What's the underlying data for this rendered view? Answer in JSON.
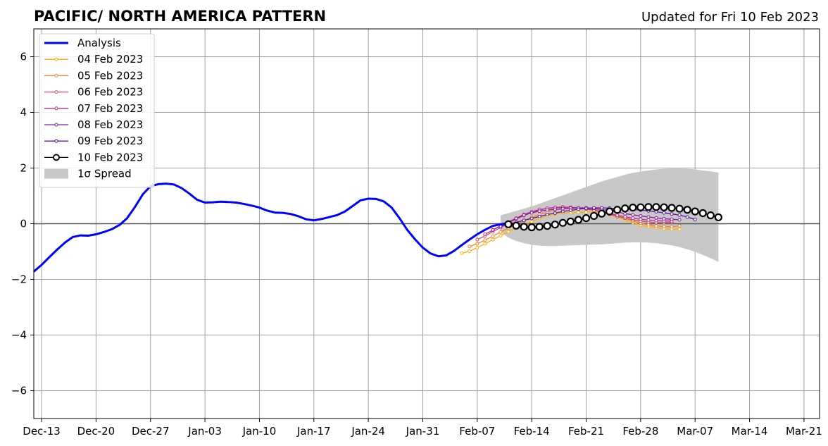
{
  "chart_data": {
    "type": "line",
    "title": "PACIFIC/ NORTH AMERICA PATTERN",
    "subtitle": "Updated for Fri 10 Feb 2023",
    "xlabel": "",
    "ylabel": "",
    "x_start": "2023-12-12",
    "xlim": [
      "Dec-12",
      "Mar-23"
    ],
    "ylim": [
      -7,
      7
    ],
    "grid": true,
    "legend_position": "top-left",
    "x_ticks": [
      "Dec-13",
      "Dec-20",
      "Dec-27",
      "Jan-03",
      "Jan-10",
      "Jan-17",
      "Jan-24",
      "Jan-31",
      "Feb-07",
      "Feb-14",
      "Feb-21",
      "Feb-28",
      "Mar-07",
      "Mar-14",
      "Mar-21"
    ],
    "y_ticks": [
      6,
      4,
      2,
      0,
      -2,
      -4,
      -6
    ],
    "y_tick_labels": [
      "6",
      "4",
      "2",
      "0",
      "−2",
      "−4",
      "−6"
    ],
    "analysis": {
      "name": "Analysis",
      "color": "#0000ff",
      "start": "Dec-12",
      "values": [
        -1.72,
        -1.48,
        -1.2,
        -0.93,
        -0.68,
        -0.48,
        -0.42,
        -0.43,
        -0.38,
        -0.3,
        -0.2,
        -0.05,
        0.2,
        0.6,
        1.05,
        1.35,
        1.42,
        1.44,
        1.41,
        1.28,
        1.08,
        0.86,
        0.76,
        0.77,
        0.79,
        0.78,
        0.76,
        0.71,
        0.65,
        0.58,
        0.47,
        0.4,
        0.39,
        0.35,
        0.27,
        0.16,
        0.12,
        0.17,
        0.24,
        0.31,
        0.44,
        0.64,
        0.84,
        0.9,
        0.89,
        0.8,
        0.58,
        0.2,
        -0.22,
        -0.56,
        -0.86,
        -1.07,
        -1.17,
        -1.14,
        -0.98,
        -0.77,
        -0.57,
        -0.38,
        -0.22,
        -0.08,
        -0.02,
        0.03
      ]
    },
    "spread": {
      "name": "1σ Spread",
      "color": "#c8c8c8",
      "start": "Feb-10",
      "upper": [
        0.3,
        0.38,
        0.46,
        0.54,
        0.62,
        0.72,
        0.82,
        0.92,
        1.02,
        1.12,
        1.22,
        1.32,
        1.42,
        1.52,
        1.6,
        1.68,
        1.76,
        1.83,
        1.87,
        1.91,
        1.95,
        1.97,
        1.98,
        1.98,
        1.97,
        1.95,
        1.91,
        1.88,
        1.84
      ],
      "lower": [
        -0.3,
        -0.5,
        -0.62,
        -0.7,
        -0.76,
        -0.79,
        -0.8,
        -0.8,
        -0.79,
        -0.78,
        -0.77,
        -0.76,
        -0.75,
        -0.74,
        -0.72,
        -0.7,
        -0.68,
        -0.67,
        -0.67,
        -0.68,
        -0.7,
        -0.74,
        -0.78,
        -0.84,
        -0.92,
        -1.01,
        -1.12,
        -1.24,
        -1.37
      ]
    },
    "series": [
      {
        "name": "04 Feb 2023",
        "color": "#ffb000",
        "start": "Feb-05",
        "values": [
          -1.06,
          -0.99,
          -0.86,
          -0.72,
          -0.57,
          -0.43,
          -0.29,
          -0.16,
          -0.04,
          0.08,
          0.19,
          0.28,
          0.35,
          0.39,
          0.4,
          0.41,
          0.42,
          0.41,
          0.38,
          0.33,
          0.24,
          0.14,
          0.04,
          -0.05,
          -0.11,
          -0.14,
          -0.18,
          -0.2,
          -0.2
        ]
      },
      {
        "name": "05 Feb 2023",
        "color": "#f28033",
        "start": "Feb-06",
        "values": [
          -0.82,
          -0.72,
          -0.59,
          -0.45,
          -0.3,
          -0.16,
          -0.02,
          0.11,
          0.23,
          0.33,
          0.42,
          0.49,
          0.53,
          0.55,
          0.55,
          0.54,
          0.52,
          0.47,
          0.39,
          0.29,
          0.19,
          0.1,
          0.02,
          -0.04,
          -0.08,
          -0.1,
          -0.11,
          -0.08
        ]
      },
      {
        "name": "06 Feb 2023",
        "color": "#dd4968",
        "start": "Feb-07",
        "values": [
          -0.57,
          -0.44,
          -0.29,
          -0.14,
          0.02,
          0.16,
          0.29,
          0.4,
          0.49,
          0.55,
          0.59,
          0.6,
          0.59,
          0.57,
          0.54,
          0.49,
          0.42,
          0.34,
          0.26,
          0.2,
          0.14,
          0.09,
          0.06,
          0.04,
          0.04,
          0.05
        ]
      },
      {
        "name": "07 Feb 2023",
        "color": "#b2358b",
        "start": "Feb-08",
        "values": [
          -0.38,
          -0.23,
          -0.08,
          0.06,
          0.2,
          0.33,
          0.43,
          0.51,
          0.55,
          0.58,
          0.59,
          0.59,
          0.57,
          0.53,
          0.48,
          0.42,
          0.36,
          0.3,
          0.25,
          0.2,
          0.16,
          0.13,
          0.11,
          0.1,
          0.09
        ]
      },
      {
        "name": "08 Feb 2023",
        "color": "#8c1aa6",
        "start": "Feb-09",
        "values": [
          -0.22,
          -0.08,
          0.06,
          0.19,
          0.31,
          0.39,
          0.45,
          0.49,
          0.52,
          0.54,
          0.56,
          0.57,
          0.57,
          0.55,
          0.51,
          0.47,
          0.42,
          0.36,
          0.32,
          0.28,
          0.24,
          0.21,
          0.18,
          0.16,
          0.14
        ]
      },
      {
        "name": "09 Feb 2023",
        "color": "#5c12a0",
        "start": "Feb-10",
        "values": [
          -0.1,
          -0.01,
          0.05,
          0.12,
          0.19,
          0.26,
          0.33,
          0.38,
          0.44,
          0.48,
          0.52,
          0.55,
          0.57,
          0.57,
          0.56,
          0.54,
          0.53,
          0.51,
          0.49,
          0.46,
          0.43,
          0.39,
          0.35,
          0.31,
          0.24,
          0.15
        ]
      },
      {
        "name": "10 Feb 2023",
        "color": "#000000",
        "start": "Feb-11",
        "values": [
          -0.02,
          -0.07,
          -0.11,
          -0.13,
          -0.11,
          -0.08,
          -0.03,
          0.03,
          0.08,
          0.14,
          0.2,
          0.28,
          0.36,
          0.44,
          0.5,
          0.55,
          0.58,
          0.59,
          0.6,
          0.6,
          0.59,
          0.57,
          0.54,
          0.5,
          0.44,
          0.38,
          0.3,
          0.23
        ]
      }
    ]
  }
}
